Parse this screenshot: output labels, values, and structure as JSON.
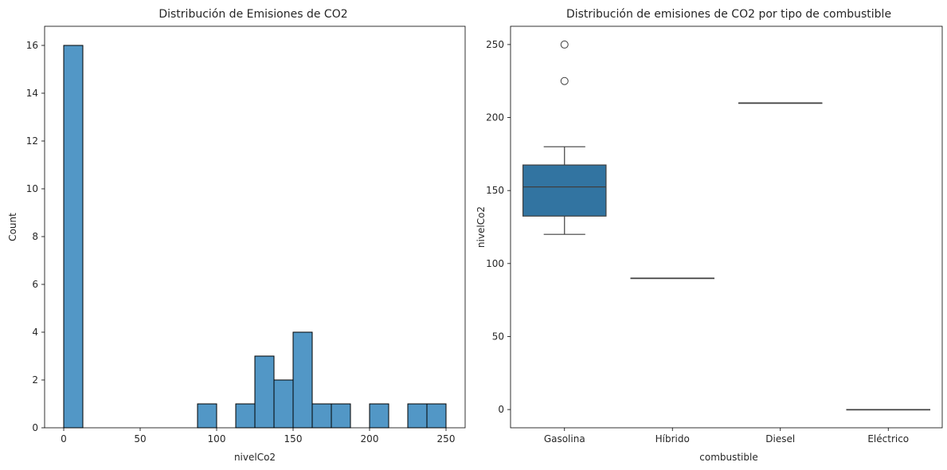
{
  "chart_data": [
    {
      "type": "bar",
      "subtype": "histogram",
      "title": "Distribución de Emisiones de CO2",
      "xlabel": "nivelCo2",
      "ylabel": "Count",
      "xlim": [
        -12.5,
        262.5
      ],
      "ylim": [
        0,
        16.8
      ],
      "xticks": [
        0,
        50,
        100,
        150,
        200,
        250
      ],
      "yticks": [
        0,
        2,
        4,
        6,
        8,
        10,
        12,
        14,
        16
      ],
      "bin_width": 12.5,
      "bins_start": 0,
      "counts": [
        16,
        0,
        0,
        0,
        0,
        0,
        0,
        1,
        0,
        1,
        3,
        2,
        4,
        1,
        1,
        0,
        1,
        0,
        1,
        1
      ],
      "bar_color": "#5297c6",
      "edge_color": "#000000",
      "grid": false
    },
    {
      "type": "box",
      "title": "Distribución de emisiones de CO2 por tipo de combustible",
      "xlabel": "combustible",
      "ylabel": "nivelCo2",
      "ylim": [
        -12.5,
        262.5
      ],
      "yticks": [
        0,
        50,
        100,
        150,
        200,
        250
      ],
      "categories": [
        "Gasolina",
        "Híbrido",
        "Diesel",
        "Eléctrico"
      ],
      "boxes": [
        {
          "category": "Gasolina",
          "whisker_low": 120,
          "q1": 132.5,
          "median": 152.5,
          "q3": 167.5,
          "whisker_high": 180,
          "outliers": [
            225,
            250
          ]
        },
        {
          "category": "Híbrido",
          "whisker_low": 90,
          "q1": 90,
          "median": 90,
          "q3": 90,
          "whisker_high": 90,
          "outliers": []
        },
        {
          "category": "Diesel",
          "whisker_low": 210,
          "q1": 210,
          "median": 210,
          "q3": 210,
          "whisker_high": 210,
          "outliers": []
        },
        {
          "category": "Eléctrico",
          "whisker_low": 0,
          "q1": 0,
          "median": 0,
          "q3": 0,
          "whisker_high": 0,
          "outliers": []
        }
      ],
      "box_color": "#3274a1",
      "line_color": "#3f3f3f",
      "grid": false
    }
  ]
}
